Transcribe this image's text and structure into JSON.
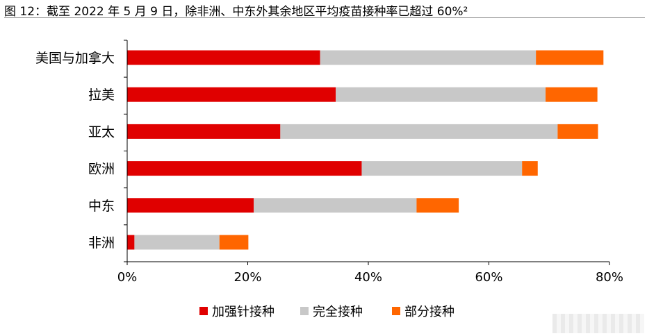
{
  "figure": {
    "title": "图 12：截至 2022 年 5 月 9 日，除非洲、中东外其余地区平均疫苗接种率已超过 60%²"
  },
  "chart_data": {
    "type": "bar",
    "orientation": "horizontal",
    "stacked": true,
    "categories": [
      "美国与加拿大",
      "拉美",
      "亚太",
      "欧洲",
      "中东",
      "非洲"
    ],
    "series": [
      {
        "name": "加强针接种",
        "color": "#e00000",
        "values": [
          32,
          34.6,
          25.4,
          38.9,
          21,
          1.2
        ]
      },
      {
        "name": "完全接种",
        "color": "#c8c8c8",
        "values": [
          35.8,
          34.8,
          46,
          26.6,
          27,
          14.1
        ]
      },
      {
        "name": "部分接种",
        "color": "#ff6600",
        "values": [
          11.2,
          8.6,
          6.7,
          2.6,
          7,
          4.8
        ]
      }
    ],
    "x_ticks": [
      "0%",
      "20%",
      "40%",
      "60%",
      "80%"
    ],
    "xlim": [
      0,
      80
    ],
    "grid": false,
    "legend_position": "bottom"
  }
}
